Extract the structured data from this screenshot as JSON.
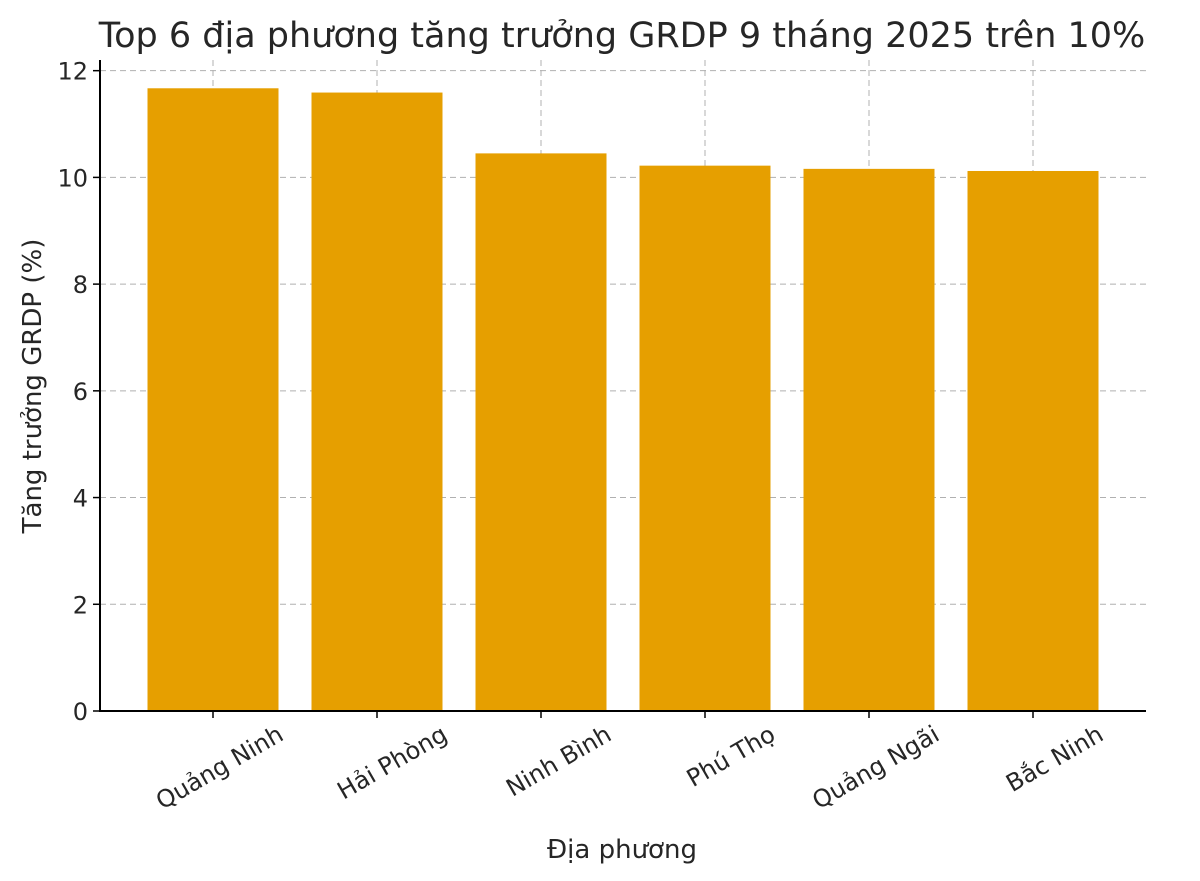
{
  "chart_data": {
    "type": "bar",
    "title": "Top 6 địa phương tăng trưởng GRDP 9 tháng 2025 trên 10%",
    "xlabel": "Địa phương",
    "ylabel": "Tăng trưởng GRDP (%)",
    "categories": [
      "Quảng Ninh",
      "Hải Phòng",
      "Ninh Bình",
      "Phú Thọ",
      "Quảng Ngãi",
      "Bắc Ninh"
    ],
    "values": [
      11.67,
      11.59,
      10.45,
      10.22,
      10.16,
      10.12
    ],
    "ylim": [
      0,
      12.2
    ],
    "yticks": [
      "0",
      "2",
      "4",
      "6",
      "8",
      "10",
      "12"
    ],
    "grid": true,
    "bar_color": "#E69F00"
  }
}
